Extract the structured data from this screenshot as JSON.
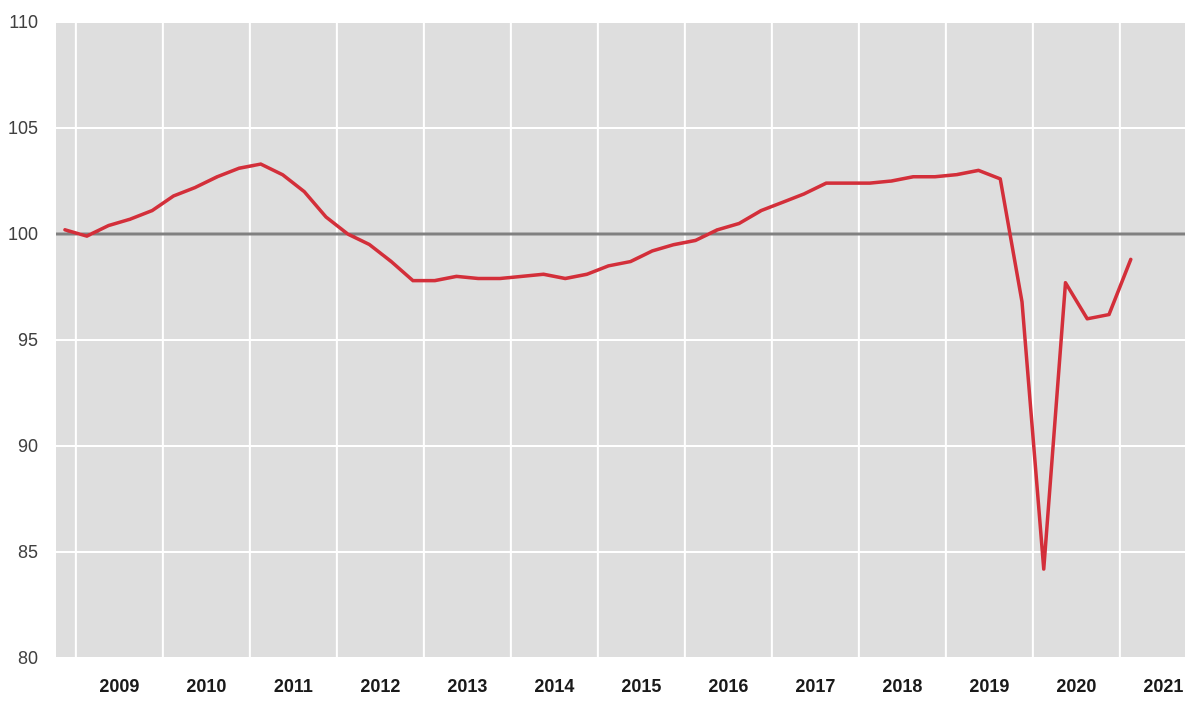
{
  "chart_data": {
    "type": "line",
    "title": "",
    "xlabel": "",
    "ylabel": "",
    "ylim": [
      80,
      110
    ],
    "y_ticks": [
      "110",
      "105",
      "100",
      "95",
      "90",
      "85",
      "80"
    ],
    "year_labels": [
      "2009",
      "2010",
      "2011",
      "2012",
      "2013",
      "2014",
      "2015",
      "2016",
      "2017",
      "2018",
      "2019",
      "2020",
      "2021"
    ],
    "x_start_quarter": "2008-Q4",
    "reference_line": 100,
    "grid": true,
    "legend": "none",
    "colors": {
      "plot_background": "#dedede",
      "grid": "#ffffff",
      "reference_line": "#808080",
      "series": "#d32f3a"
    },
    "series": [
      {
        "name": "",
        "values": [
          100.2,
          99.9,
          100.4,
          100.7,
          101.1,
          101.8,
          102.2,
          102.7,
          103.1,
          103.3,
          102.8,
          102.0,
          100.8,
          100.0,
          99.5,
          98.7,
          97.8,
          97.8,
          98.0,
          97.9,
          97.9,
          98.0,
          98.1,
          97.9,
          98.1,
          98.5,
          98.7,
          99.2,
          99.5,
          99.7,
          100.2,
          100.5,
          101.1,
          101.5,
          101.9,
          102.4,
          102.4,
          102.4,
          102.5,
          102.7,
          102.7,
          102.8,
          103.0,
          102.6,
          96.8,
          84.2,
          97.7,
          96.0,
          96.2,
          98.8
        ]
      }
    ]
  }
}
